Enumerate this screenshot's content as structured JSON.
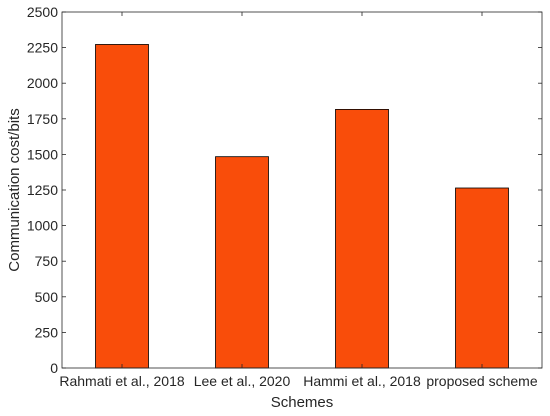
{
  "chart_data": {
    "type": "bar",
    "title": "",
    "xlabel": "Schemes",
    "ylabel": "Communication cost/bits",
    "categories": [
      "Rahmati et al., 2018",
      "Lee et al., 2020",
      "Hammi et al., 2018",
      "proposed scheme"
    ],
    "values": [
      2272,
      1484,
      1816,
      1264
    ],
    "ylim": [
      0,
      2500
    ],
    "yticks": [
      0,
      250,
      500,
      750,
      1000,
      1250,
      1500,
      1750,
      2000,
      2250,
      2500
    ],
    "grid": false,
    "legend": "none",
    "colors": {
      "bar_fill": "#F94D0A",
      "bar_edge": "#000000",
      "axis": "#262626"
    }
  }
}
